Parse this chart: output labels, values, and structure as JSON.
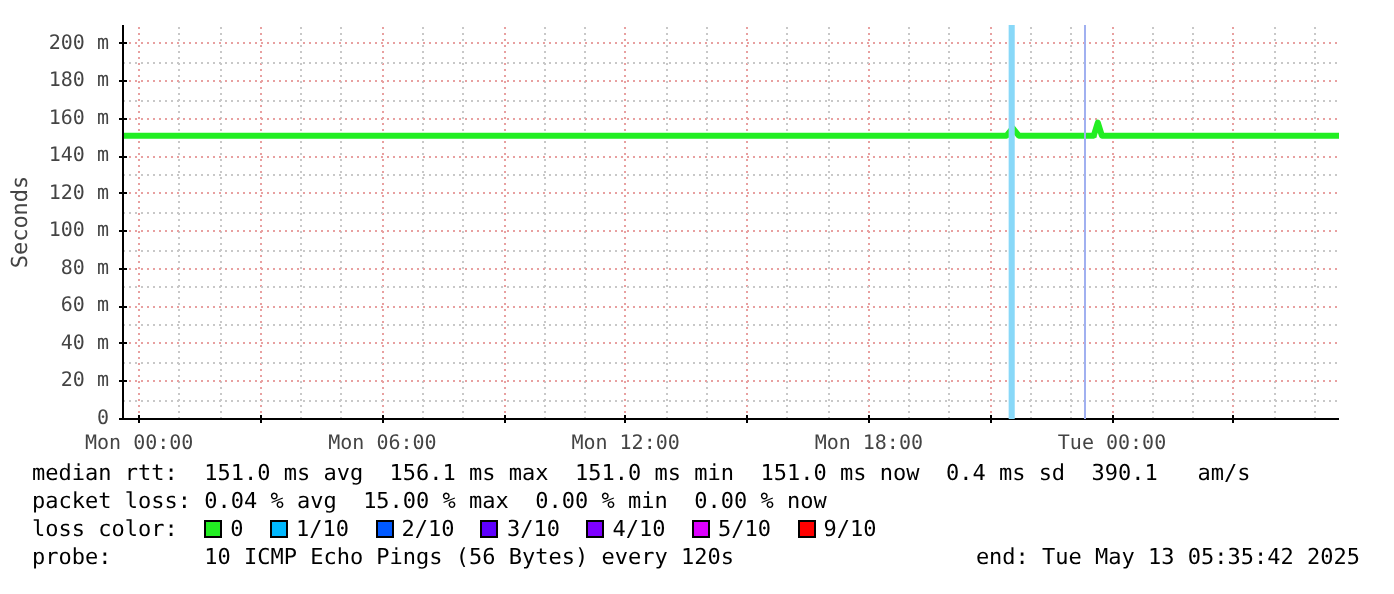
{
  "chart_data": {
    "type": "line",
    "ylabel": "Seconds",
    "legend_title": "loss color:",
    "x": [
      "2025-05-11T23:36",
      "2025-05-12T21:24",
      "2025-05-12T21:33",
      "2025-05-12T21:42",
      "2025-05-12T23:33",
      "2025-05-12T23:39",
      "2025-05-12T23:45",
      "2025-05-13T05:36"
    ],
    "series": [
      {
        "name": "0",
        "color": "#22ee22",
        "values": [
          151,
          151,
          155,
          151,
          151,
          158,
          151,
          151
        ]
      },
      {
        "name": "1/10",
        "color": "#00b8ff",
        "values": [
          null,
          null,
          null,
          null,
          null,
          null,
          null,
          null
        ]
      },
      {
        "name": "2/10",
        "color": "#0059ff",
        "values": [
          null,
          null,
          null,
          null,
          null,
          null,
          null,
          null
        ]
      },
      {
        "name": "3/10",
        "color": "#5e00ff",
        "values": [
          null,
          null,
          null,
          null,
          null,
          null,
          null,
          null
        ]
      },
      {
        "name": "4/10",
        "color": "#7e00ff",
        "values": [
          null,
          null,
          null,
          null,
          null,
          null,
          null,
          null
        ]
      },
      {
        "name": "5/10",
        "color": "#dd00ff",
        "values": [
          null,
          null,
          null,
          null,
          null,
          null,
          null,
          null
        ]
      },
      {
        "name": "9/10",
        "color": "#ff0000",
        "values": [
          null,
          null,
          null,
          null,
          null,
          null,
          null,
          null
        ]
      }
    ],
    "xlim": [
      "2025-05-11T23:36",
      "2025-05-13T05:36"
    ],
    "xticks": [
      {
        "value": "2025-05-12T00:00",
        "label": "Mon 00:00"
      },
      {
        "value": "2025-05-12T03:00",
        "label": null
      },
      {
        "value": "2025-05-12T06:00",
        "label": "Mon 06:00"
      },
      {
        "value": "2025-05-12T09:00",
        "label": null
      },
      {
        "value": "2025-05-12T12:00",
        "label": "Mon 12:00"
      },
      {
        "value": "2025-05-12T15:00",
        "label": null
      },
      {
        "value": "2025-05-12T18:00",
        "label": "Mon 18:00"
      },
      {
        "value": "2025-05-12T21:00",
        "label": null
      },
      {
        "value": "2025-05-13T00:00",
        "label": "Tue 00:00"
      },
      {
        "value": "2025-05-13T03:00",
        "label": null
      }
    ],
    "ylim": [
      0,
      210
    ],
    "yticks": [
      0,
      {
        "value": 20,
        "label": "20 m"
      },
      {
        "value": 40,
        "label": "40 m"
      },
      {
        "value": 60,
        "label": "60 m"
      },
      {
        "value": 80,
        "label": "80 m"
      },
      {
        "value": 100,
        "label": "100 m"
      },
      {
        "value": 120,
        "label": "120 m"
      },
      {
        "value": 140,
        "label": "140 m"
      },
      {
        "value": 160,
        "label": "160 m"
      },
      {
        "value": 180,
        "label": "180 m"
      },
      {
        "value": 200,
        "label": "200 m"
      }
    ],
    "bands": [
      {
        "axis": "x",
        "from": "2025-05-12T21:27",
        "to": "2025-05-12T21:36",
        "color": "#88d8f8"
      }
    ],
    "ref_lines": [
      {
        "axis": "x",
        "value": "2025-05-12T23:20",
        "color": "#a0b0f0"
      }
    ],
    "grid": true,
    "legend": "bottom",
    "marker": "none",
    "line_style": "solid",
    "annotations": [
      "median rtt:  151.0 ms avg  156.1 ms max  151.0 ms min  151.0 ms now  0.4 ms sd  390.1   am/s",
      "packet loss: 0.04 % avg  15.00 % max  0.00 % min  0.00 % now",
      "probe:       10 ICMP Echo Pings (56 Bytes) every 120s",
      "end: Tue May 13 05:35:42 2025"
    ]
  }
}
